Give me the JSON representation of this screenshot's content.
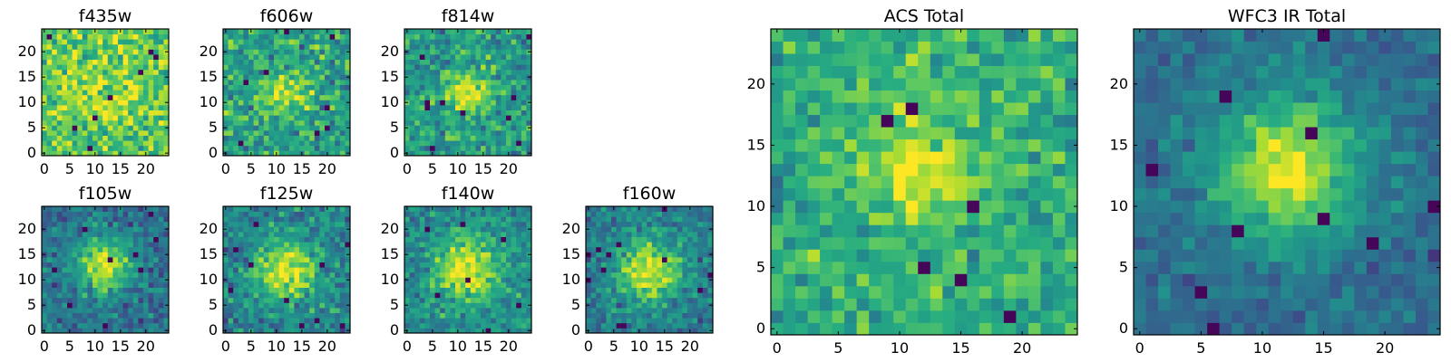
{
  "chart_data": [
    {
      "type": "heatmap",
      "title": "f435w",
      "xlim": [
        0,
        24
      ],
      "ylim": [
        0,
        24
      ],
      "xticks": [
        0,
        5,
        10,
        15,
        20
      ],
      "yticks": [
        0,
        5,
        10,
        15,
        20
      ],
      "grid": [
        25,
        25
      ],
      "colormap": "viridis",
      "peak": [
        12,
        12
      ],
      "blob_amplitude": 0.12,
      "blob_sigma": 6,
      "background": 0.74,
      "noise": 0.18,
      "seed": 11
    },
    {
      "type": "heatmap",
      "title": "f606w",
      "xlim": [
        0,
        24
      ],
      "ylim": [
        0,
        24
      ],
      "xticks": [
        0,
        5,
        10,
        15,
        20
      ],
      "yticks": [
        0,
        5,
        10,
        15,
        20
      ],
      "grid": [
        25,
        25
      ],
      "colormap": "viridis",
      "peak": [
        12,
        12
      ],
      "blob_amplitude": 0.34,
      "blob_sigma": 3.2,
      "background": 0.58,
      "noise": 0.18,
      "seed": 23
    },
    {
      "type": "heatmap",
      "title": "f814w",
      "xlim": [
        0,
        24
      ],
      "ylim": [
        0,
        24
      ],
      "xticks": [
        0,
        5,
        10,
        15,
        20
      ],
      "yticks": [
        0,
        5,
        10,
        15,
        20
      ],
      "grid": [
        25,
        25
      ],
      "colormap": "viridis",
      "peak": [
        12,
        12
      ],
      "blob_amplitude": 0.38,
      "blob_sigma": 3.0,
      "background": 0.56,
      "noise": 0.17,
      "seed": 37
    },
    {
      "type": "heatmap",
      "title": "f105w",
      "xlim": [
        0,
        24
      ],
      "ylim": [
        0,
        24
      ],
      "xticks": [
        0,
        5,
        10,
        15,
        20
      ],
      "yticks": [
        0,
        5,
        10,
        15,
        20
      ],
      "grid": [
        25,
        25
      ],
      "colormap": "viridis",
      "peak": [
        12,
        13
      ],
      "blob_amplitude": 0.6,
      "blob_sigma": 3.6,
      "background": 0.38,
      "noise": 0.14,
      "seed": 41
    },
    {
      "type": "heatmap",
      "title": "f125w",
      "xlim": [
        0,
        24
      ],
      "ylim": [
        0,
        24
      ],
      "xticks": [
        0,
        5,
        10,
        15,
        20
      ],
      "yticks": [
        0,
        5,
        10,
        15,
        20
      ],
      "grid": [
        25,
        25
      ],
      "colormap": "viridis",
      "peak": [
        12,
        12
      ],
      "blob_amplitude": 0.5,
      "blob_sigma": 4.2,
      "background": 0.45,
      "noise": 0.15,
      "seed": 53
    },
    {
      "type": "heatmap",
      "title": "f140w",
      "xlim": [
        0,
        24
      ],
      "ylim": [
        0,
        24
      ],
      "xticks": [
        0,
        5,
        10,
        15,
        20
      ],
      "yticks": [
        0,
        5,
        10,
        15,
        20
      ],
      "grid": [
        25,
        25
      ],
      "colormap": "viridis",
      "peak": [
        12,
        12
      ],
      "blob_amplitude": 0.5,
      "blob_sigma": 4.5,
      "background": 0.47,
      "noise": 0.14,
      "seed": 67
    },
    {
      "type": "heatmap",
      "title": "f160w",
      "xlim": [
        0,
        24
      ],
      "ylim": [
        0,
        24
      ],
      "xticks": [
        0,
        5,
        10,
        15,
        20
      ],
      "yticks": [
        0,
        5,
        10,
        15,
        20
      ],
      "grid": [
        25,
        25
      ],
      "colormap": "viridis",
      "peak": [
        12,
        12
      ],
      "blob_amplitude": 0.55,
      "blob_sigma": 4.2,
      "background": 0.42,
      "noise": 0.14,
      "seed": 79
    },
    {
      "type": "heatmap",
      "title": "ACS Total",
      "xlim": [
        0,
        24
      ],
      "ylim": [
        0,
        24
      ],
      "xticks": [
        0,
        5,
        10,
        15,
        20
      ],
      "yticks": [
        0,
        5,
        10,
        15,
        20
      ],
      "grid": [
        25,
        25
      ],
      "colormap": "viridis",
      "peak": [
        12,
        13
      ],
      "blob_amplitude": 0.3,
      "blob_sigma": 3.5,
      "background": 0.62,
      "noise": 0.15,
      "seed": 83
    },
    {
      "type": "heatmap",
      "title": "WFC3 IR Total",
      "xlim": [
        0,
        24
      ],
      "ylim": [
        0,
        24
      ],
      "xticks": [
        0,
        5,
        10,
        15,
        20
      ],
      "yticks": [
        0,
        5,
        10,
        15,
        20
      ],
      "grid": [
        25,
        25
      ],
      "colormap": "viridis",
      "peak": [
        12,
        13
      ],
      "blob_amplitude": 0.62,
      "blob_sigma": 4.0,
      "background": 0.36,
      "noise": 0.09,
      "seed": 97
    }
  ]
}
